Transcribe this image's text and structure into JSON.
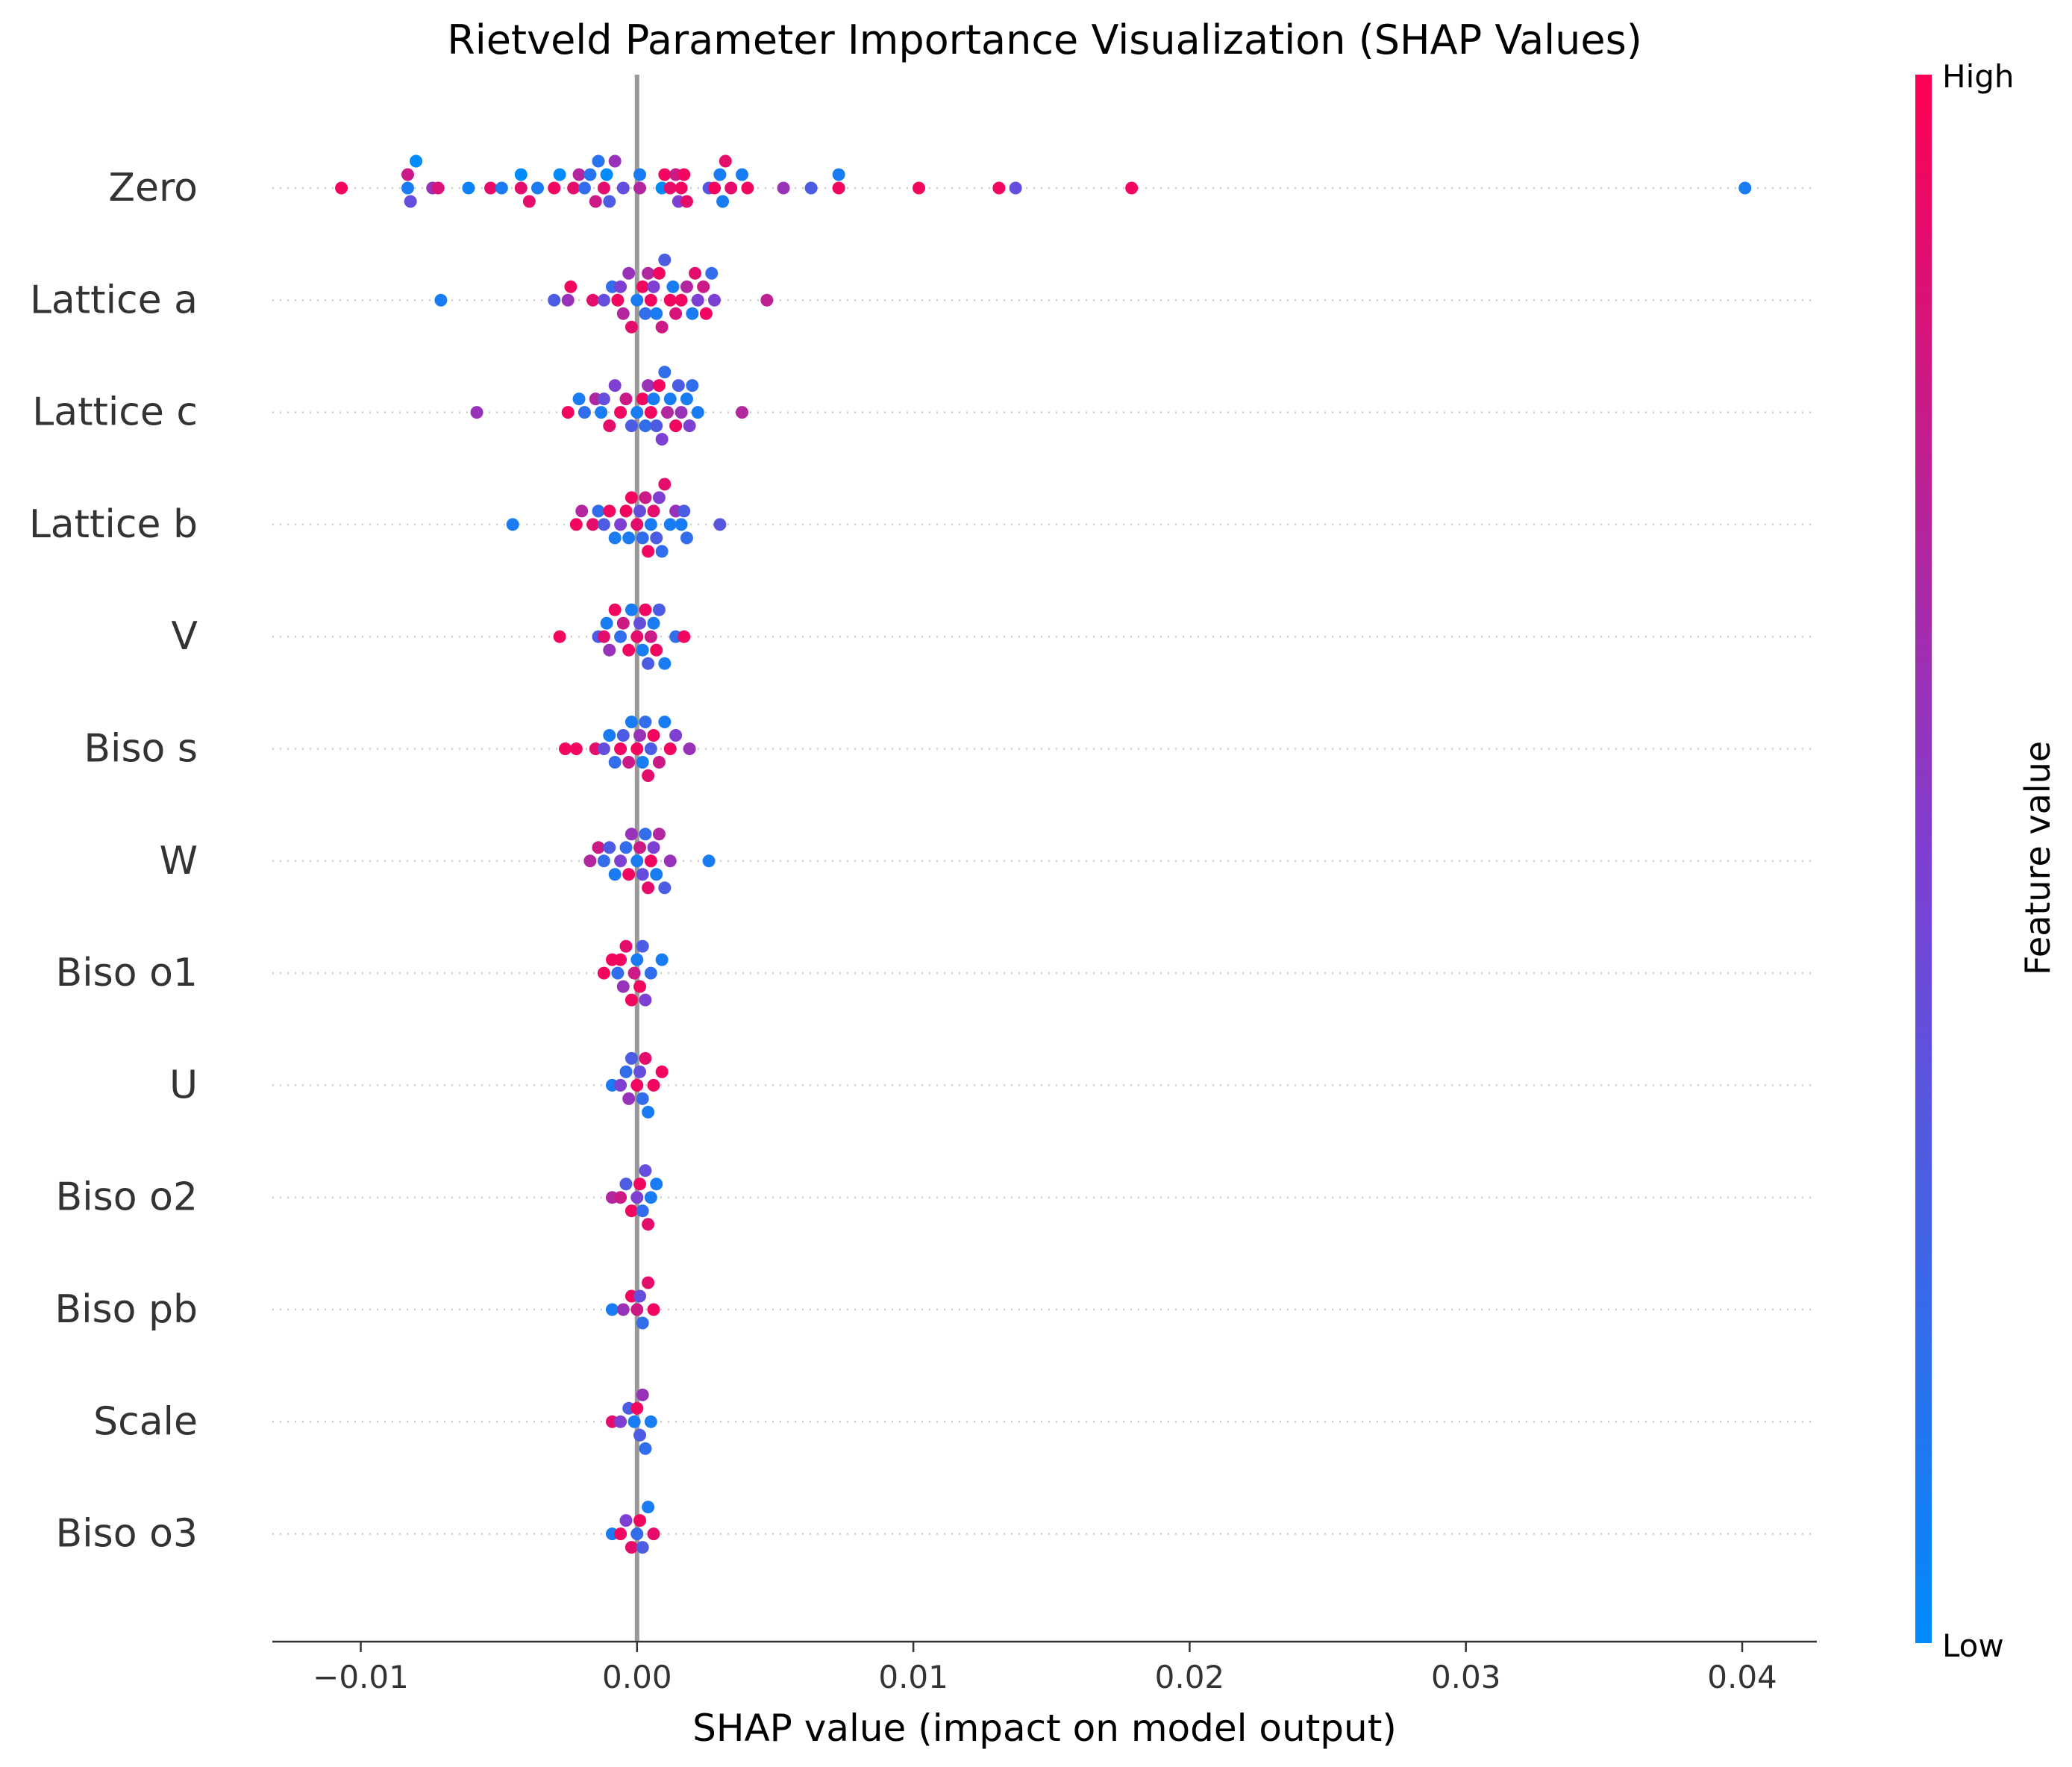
{
  "chart_data": {
    "type": "scatter",
    "subtype": "shap-beeswarm",
    "title": "Rietveld Parameter Importance Visualization (SHAP Values)",
    "xlabel": "SHAP value (impact on model output)",
    "xlim": [
      -0.0132,
      0.0427
    ],
    "xticks": [
      -0.01,
      0.0,
      0.01,
      0.02,
      0.03,
      0.04
    ],
    "xtick_labels": [
      "−0.01",
      "0.00",
      "0.01",
      "0.02",
      "0.03",
      "0.04"
    ],
    "zero_line": 0.0,
    "grid": "dotted horizontal row guides",
    "colorbar": {
      "label": "Feature value",
      "high_label": "High",
      "low_label": "Low",
      "low_color": "#008bfb",
      "mid_color": "#7e3fd3",
      "high_color": "#ff0052"
    },
    "features": [
      {
        "name": "Zero",
        "points": [
          [
            -0.0107,
            0.95
          ],
          [
            -0.0083,
            0.1
          ],
          [
            -0.0083,
            0.8
          ],
          [
            -0.0082,
            0.4
          ],
          [
            -0.008,
            0.0
          ],
          [
            -0.0074,
            0.6
          ],
          [
            -0.0072,
            0.85
          ],
          [
            -0.0061,
            0.05
          ],
          [
            -0.0053,
            0.92
          ],
          [
            -0.0049,
            0.1
          ],
          [
            -0.0042,
            0.9
          ],
          [
            -0.0042,
            0.0
          ],
          [
            -0.0039,
            0.9
          ],
          [
            -0.0036,
            0.1
          ],
          [
            -0.003,
            0.95
          ],
          [
            -0.0028,
            0.0
          ],
          [
            -0.0023,
            0.9
          ],
          [
            -0.0021,
            0.7
          ],
          [
            -0.0019,
            0.2
          ],
          [
            -0.0017,
            0.15
          ],
          [
            -0.0015,
            0.8
          ],
          [
            -0.0014,
            0.15
          ],
          [
            -0.0012,
            0.9
          ],
          [
            -0.0011,
            0.0
          ],
          [
            -0.001,
            0.3
          ],
          [
            -0.0008,
            0.6
          ],
          [
            -0.0005,
            0.4
          ],
          [
            0.0001,
            0.7
          ],
          [
            0.0001,
            0.1
          ],
          [
            0.0009,
            0.0
          ],
          [
            0.001,
            0.95
          ],
          [
            0.0012,
            0.9
          ],
          [
            0.0014,
            0.8
          ],
          [
            0.0015,
            0.5
          ],
          [
            0.0016,
            0.95
          ],
          [
            0.0017,
            0.95
          ],
          [
            0.0018,
            0.9
          ],
          [
            0.0026,
            0.35
          ],
          [
            0.0028,
            0.95
          ],
          [
            0.003,
            0.1
          ],
          [
            0.0031,
            0.1
          ],
          [
            0.0032,
            0.9
          ],
          [
            0.0034,
            0.9
          ],
          [
            0.0038,
            0.1
          ],
          [
            0.004,
            0.95
          ],
          [
            0.0053,
            0.6
          ],
          [
            0.0063,
            0.3
          ],
          [
            0.0073,
            0.95
          ],
          [
            0.0073,
            0.1
          ],
          [
            0.0102,
            0.95
          ],
          [
            0.0131,
            0.95
          ],
          [
            0.0137,
            0.4
          ],
          [
            0.0179,
            0.95
          ],
          [
            0.0401,
            0.1
          ]
        ]
      },
      {
        "name": "Lattice a",
        "points": [
          [
            -0.0071,
            0.1
          ],
          [
            -0.003,
            0.3
          ],
          [
            -0.0025,
            0.6
          ],
          [
            -0.0024,
            0.95
          ],
          [
            -0.0016,
            0.9
          ],
          [
            -0.0012,
            0.4
          ],
          [
            -0.0009,
            0.2
          ],
          [
            -0.0007,
            0.95
          ],
          [
            -0.0006,
            0.5
          ],
          [
            -0.0005,
            0.7
          ],
          [
            -0.0003,
            0.6
          ],
          [
            -0.0002,
            0.9
          ],
          [
            0.0,
            0.1
          ],
          [
            0.0002,
            0.95
          ],
          [
            0.0003,
            0.2
          ],
          [
            0.0004,
            0.7
          ],
          [
            0.0005,
            0.95
          ],
          [
            0.0006,
            0.5
          ],
          [
            0.0007,
            0.1
          ],
          [
            0.0008,
            0.95
          ],
          [
            0.0009,
            0.8
          ],
          [
            0.001,
            0.3
          ],
          [
            0.0012,
            0.95
          ],
          [
            0.0013,
            0.1
          ],
          [
            0.0014,
            0.85
          ],
          [
            0.0016,
            0.95
          ],
          [
            0.0018,
            0.7
          ],
          [
            0.002,
            0.1
          ],
          [
            0.0021,
            0.9
          ],
          [
            0.0022,
            0.5
          ],
          [
            0.0024,
            0.8
          ],
          [
            0.0025,
            0.95
          ],
          [
            0.0027,
            0.2
          ],
          [
            0.0028,
            0.5
          ],
          [
            0.0047,
            0.75
          ]
        ]
      },
      {
        "name": "Lattice c",
        "points": [
          [
            -0.0058,
            0.6
          ],
          [
            -0.0025,
            0.95
          ],
          [
            -0.0021,
            0.1
          ],
          [
            -0.0019,
            0.2
          ],
          [
            -0.0015,
            0.7
          ],
          [
            -0.0013,
            0.1
          ],
          [
            -0.0012,
            0.4
          ],
          [
            -0.001,
            0.9
          ],
          [
            -0.0008,
            0.5
          ],
          [
            -0.0006,
            0.95
          ],
          [
            -0.0004,
            0.8
          ],
          [
            -0.0002,
            0.3
          ],
          [
            0.0,
            0.1
          ],
          [
            0.0002,
            0.95
          ],
          [
            0.0003,
            0.2
          ],
          [
            0.0004,
            0.6
          ],
          [
            0.0005,
            0.95
          ],
          [
            0.0006,
            0.1
          ],
          [
            0.0007,
            0.3
          ],
          [
            0.0008,
            0.95
          ],
          [
            0.0009,
            0.5
          ],
          [
            0.001,
            0.2
          ],
          [
            0.0011,
            0.7
          ],
          [
            0.0012,
            0.1
          ],
          [
            0.0014,
            0.95
          ],
          [
            0.0015,
            0.3
          ],
          [
            0.0016,
            0.6
          ],
          [
            0.0018,
            0.1
          ],
          [
            0.0019,
            0.5
          ],
          [
            0.002,
            0.2
          ],
          [
            0.0022,
            0.1
          ],
          [
            0.0038,
            0.7
          ]
        ]
      },
      {
        "name": "Lattice b",
        "points": [
          [
            -0.0045,
            0.1
          ],
          [
            -0.0022,
            0.95
          ],
          [
            -0.002,
            0.7
          ],
          [
            -0.0016,
            0.9
          ],
          [
            -0.0014,
            0.2
          ],
          [
            -0.0012,
            0.3
          ],
          [
            -0.001,
            0.95
          ],
          [
            -0.0008,
            0.1
          ],
          [
            -0.0006,
            0.5
          ],
          [
            -0.0004,
            0.95
          ],
          [
            -0.0003,
            0.1
          ],
          [
            -0.0002,
            0.95
          ],
          [
            0.0,
            0.9
          ],
          [
            0.0001,
            0.4
          ],
          [
            0.0002,
            0.2
          ],
          [
            0.0003,
            0.8
          ],
          [
            0.0004,
            0.95
          ],
          [
            0.0005,
            0.1
          ],
          [
            0.0006,
            0.9
          ],
          [
            0.0007,
            0.3
          ],
          [
            0.0008,
            0.5
          ],
          [
            0.0009,
            0.2
          ],
          [
            0.001,
            0.9
          ],
          [
            0.0012,
            0.1
          ],
          [
            0.0014,
            0.6
          ],
          [
            0.0016,
            0.1
          ],
          [
            0.0017,
            0.3
          ],
          [
            0.0018,
            0.2
          ],
          [
            0.003,
            0.35
          ]
        ]
      },
      {
        "name": "V",
        "points": [
          [
            -0.0028,
            0.95
          ],
          [
            -0.0014,
            0.3
          ],
          [
            -0.0012,
            0.9
          ],
          [
            -0.0011,
            0.1
          ],
          [
            -0.001,
            0.6
          ],
          [
            -0.0008,
            0.95
          ],
          [
            -0.0006,
            0.2
          ],
          [
            -0.0005,
            0.8
          ],
          [
            -0.0003,
            0.95
          ],
          [
            -0.0002,
            0.1
          ],
          [
            0.0,
            0.9
          ],
          [
            0.0001,
            0.4
          ],
          [
            0.0002,
            0.1
          ],
          [
            0.0003,
            0.95
          ],
          [
            0.0004,
            0.3
          ],
          [
            0.0005,
            0.8
          ],
          [
            0.0006,
            0.1
          ],
          [
            0.0007,
            0.95
          ],
          [
            0.0008,
            0.3
          ],
          [
            0.001,
            0.1
          ],
          [
            0.0014,
            0.2
          ],
          [
            0.0017,
            0.95
          ]
        ]
      },
      {
        "name": "Biso s",
        "points": [
          [
            -0.0026,
            0.95
          ],
          [
            -0.0022,
            0.95
          ],
          [
            -0.0015,
            0.9
          ],
          [
            -0.0012,
            0.4
          ],
          [
            -0.001,
            0.1
          ],
          [
            -0.0008,
            0.2
          ],
          [
            -0.0006,
            0.95
          ],
          [
            -0.0005,
            0.3
          ],
          [
            -0.0003,
            0.8
          ],
          [
            -0.0002,
            0.1
          ],
          [
            0.0,
            0.95
          ],
          [
            0.0001,
            0.6
          ],
          [
            0.0002,
            0.1
          ],
          [
            0.0003,
            0.2
          ],
          [
            0.0004,
            0.9
          ],
          [
            0.0005,
            0.3
          ],
          [
            0.0006,
            0.95
          ],
          [
            0.0008,
            0.8
          ],
          [
            0.001,
            0.1
          ],
          [
            0.0012,
            0.95
          ],
          [
            0.0014,
            0.5
          ],
          [
            0.0019,
            0.6
          ]
        ]
      },
      {
        "name": "W",
        "points": [
          [
            -0.0017,
            0.7
          ],
          [
            -0.0014,
            0.8
          ],
          [
            -0.0012,
            0.2
          ],
          [
            -0.001,
            0.3
          ],
          [
            -0.0008,
            0.1
          ],
          [
            -0.0006,
            0.5
          ],
          [
            -0.0004,
            0.2
          ],
          [
            -0.0003,
            0.95
          ],
          [
            -0.0002,
            0.6
          ],
          [
            0.0,
            0.1
          ],
          [
            0.0001,
            0.8
          ],
          [
            0.0002,
            0.4
          ],
          [
            0.0003,
            0.2
          ],
          [
            0.0004,
            0.9
          ],
          [
            0.0005,
            0.95
          ],
          [
            0.0006,
            0.5
          ],
          [
            0.0007,
            0.1
          ],
          [
            0.0008,
            0.7
          ],
          [
            0.001,
            0.3
          ],
          [
            0.0012,
            0.6
          ],
          [
            0.0026,
            0.1
          ]
        ]
      },
      {
        "name": "Biso o1",
        "points": [
          [
            -0.0012,
            0.95
          ],
          [
            -0.0009,
            0.95
          ],
          [
            -0.0007,
            0.2
          ],
          [
            -0.0006,
            0.95
          ],
          [
            -0.0005,
            0.6
          ],
          [
            -0.0004,
            0.9
          ],
          [
            -0.0002,
            0.95
          ],
          [
            -0.0001,
            0.8
          ],
          [
            0.0,
            0.1
          ],
          [
            0.0001,
            0.95
          ],
          [
            0.0002,
            0.3
          ],
          [
            0.0003,
            0.5
          ],
          [
            0.0005,
            0.2
          ],
          [
            0.0009,
            0.1
          ]
        ]
      },
      {
        "name": "U",
        "points": [
          [
            -0.0009,
            0.1
          ],
          [
            -0.0006,
            0.5
          ],
          [
            -0.0004,
            0.2
          ],
          [
            -0.0003,
            0.6
          ],
          [
            -0.0002,
            0.3
          ],
          [
            0.0,
            0.95
          ],
          [
            0.0001,
            0.4
          ],
          [
            0.0002,
            0.2
          ],
          [
            0.0003,
            0.9
          ],
          [
            0.0004,
            0.1
          ],
          [
            0.0006,
            0.95
          ],
          [
            0.0009,
            0.95
          ]
        ]
      },
      {
        "name": "Biso o2",
        "points": [
          [
            -0.0009,
            0.7
          ],
          [
            -0.0006,
            0.8
          ],
          [
            -0.0004,
            0.3
          ],
          [
            -0.0002,
            0.95
          ],
          [
            0.0,
            0.5
          ],
          [
            0.0001,
            0.95
          ],
          [
            0.0002,
            0.2
          ],
          [
            0.0003,
            0.4
          ],
          [
            0.0004,
            0.9
          ],
          [
            0.0005,
            0.1
          ],
          [
            0.0007,
            0.1
          ]
        ]
      },
      {
        "name": "Biso pb",
        "points": [
          [
            -0.0009,
            0.1
          ],
          [
            -0.0005,
            0.6
          ],
          [
            -0.0002,
            0.95
          ],
          [
            0.0,
            0.8
          ],
          [
            0.0001,
            0.4
          ],
          [
            0.0002,
            0.2
          ],
          [
            0.0004,
            0.9
          ],
          [
            0.0006,
            0.95
          ]
        ]
      },
      {
        "name": "Scale",
        "points": [
          [
            -0.0009,
            0.9
          ],
          [
            -0.0006,
            0.5
          ],
          [
            -0.0003,
            0.3
          ],
          [
            -0.0001,
            0.1
          ],
          [
            0.0,
            0.95
          ],
          [
            0.0001,
            0.3
          ],
          [
            0.0002,
            0.6
          ],
          [
            0.0003,
            0.2
          ],
          [
            0.0005,
            0.1
          ]
        ]
      },
      {
        "name": "Biso o3",
        "points": [
          [
            -0.0009,
            0.1
          ],
          [
            -0.0006,
            0.95
          ],
          [
            -0.0004,
            0.5
          ],
          [
            -0.0002,
            0.9
          ],
          [
            0.0,
            0.2
          ],
          [
            0.0001,
            0.95
          ],
          [
            0.0002,
            0.3
          ],
          [
            0.0004,
            0.1
          ],
          [
            0.0006,
            0.9
          ]
        ]
      }
    ]
  }
}
